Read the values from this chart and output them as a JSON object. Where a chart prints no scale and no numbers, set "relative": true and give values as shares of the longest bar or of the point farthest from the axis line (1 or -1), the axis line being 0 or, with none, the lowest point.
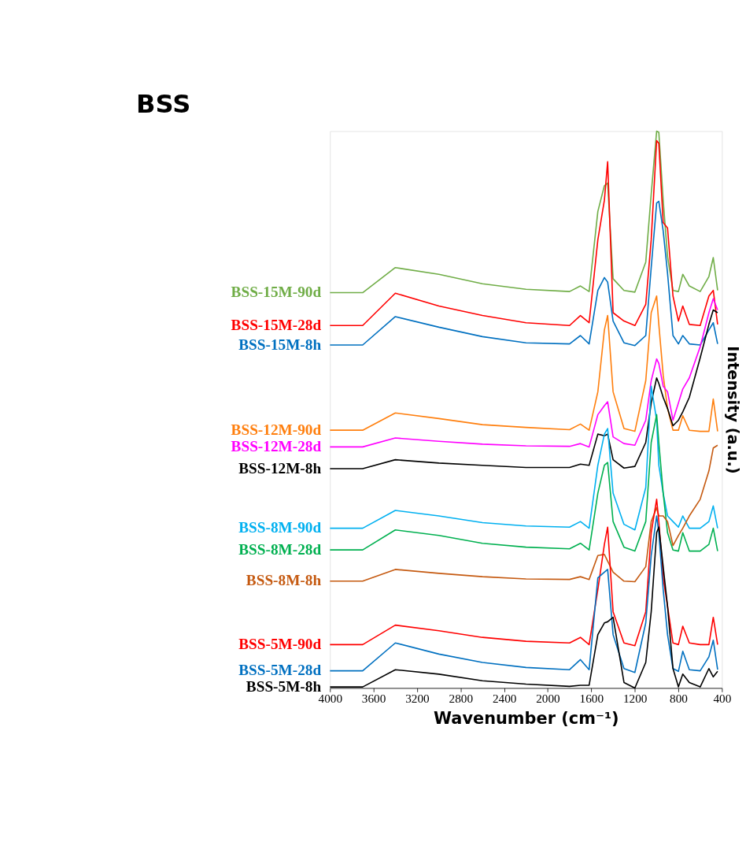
{
  "chart_data": {
    "type": "line",
    "title": "BSS",
    "xlabel": "Wavenumber (cm⁻¹)",
    "ylabel": "Intensity (a.u.)",
    "relative": true,
    "xlim": [
      4000,
      400
    ],
    "xticks": [
      4000,
      3600,
      3200,
      2800,
      2400,
      2000,
      1600,
      1200,
      800,
      400
    ],
    "grid": false,
    "legend": false,
    "marker": "none",
    "line_style": "solid",
    "x": [
      4000,
      3700,
      3400,
      3000,
      2600,
      2200,
      1800,
      1700,
      1620,
      1540,
      1480,
      1450,
      1400,
      1300,
      1200,
      1100,
      1050,
      1000,
      980,
      940,
      900,
      850,
      800,
      760,
      700,
      600,
      520,
      480,
      440
    ],
    "series": [
      {
        "name": "BSS-15M-90d",
        "color": "#70ad47",
        "values": [
          0.71,
          0.71,
          0.755,
          0.743,
          0.726,
          0.716,
          0.712,
          0.722,
          0.712,
          0.856,
          0.902,
          0.907,
          0.735,
          0.714,
          0.711,
          0.765,
          0.887,
          1.0,
          0.998,
          0.876,
          0.775,
          0.714,
          0.712,
          0.743,
          0.722,
          0.712,
          0.739,
          0.773,
          0.714
        ]
      },
      {
        "name": "BSS-15M-28d",
        "color": "#ff0000",
        "values": [
          0.651,
          0.651,
          0.709,
          0.686,
          0.669,
          0.656,
          0.651,
          0.669,
          0.656,
          0.805,
          0.876,
          0.945,
          0.674,
          0.659,
          0.651,
          0.689,
          0.805,
          0.983,
          0.978,
          0.836,
          0.826,
          0.704,
          0.659,
          0.686,
          0.653,
          0.651,
          0.704,
          0.714,
          0.653
        ]
      },
      {
        "name": "BSS-15M-8h",
        "color": "#0070c0",
        "values": [
          0.616,
          0.616,
          0.667,
          0.648,
          0.631,
          0.62,
          0.618,
          0.633,
          0.618,
          0.714,
          0.737,
          0.729,
          0.659,
          0.62,
          0.615,
          0.633,
          0.755,
          0.871,
          0.874,
          0.821,
          0.745,
          0.633,
          0.618,
          0.633,
          0.618,
          0.616,
          0.643,
          0.656,
          0.618
        ]
      },
      {
        "name": "BSS-12M-90d",
        "color": "#ff7f0e",
        "values": [
          0.463,
          0.463,
          0.494,
          0.484,
          0.473,
          0.468,
          0.464,
          0.474,
          0.463,
          0.532,
          0.643,
          0.669,
          0.532,
          0.466,
          0.461,
          0.552,
          0.674,
          0.704,
          0.653,
          0.562,
          0.502,
          0.463,
          0.463,
          0.489,
          0.463,
          0.461,
          0.461,
          0.519,
          0.461
        ]
      },
      {
        "name": "BSS-12M-28d",
        "color": "#ff00ff",
        "values": [
          0.433,
          0.433,
          0.449,
          0.443,
          0.438,
          0.435,
          0.434,
          0.439,
          0.433,
          0.491,
          0.507,
          0.514,
          0.451,
          0.439,
          0.436,
          0.481,
          0.552,
          0.591,
          0.583,
          0.542,
          0.532,
          0.481,
          0.512,
          0.537,
          0.557,
          0.613,
          0.674,
          0.699,
          0.679
        ]
      },
      {
        "name": "BSS-12M-8h",
        "color": "#000000",
        "values": [
          0.394,
          0.394,
          0.41,
          0.404,
          0.4,
          0.396,
          0.396,
          0.402,
          0.4,
          0.456,
          0.453,
          0.456,
          0.41,
          0.395,
          0.398,
          0.441,
          0.512,
          0.557,
          0.547,
          0.522,
          0.502,
          0.471,
          0.481,
          0.496,
          0.522,
          0.593,
          0.653,
          0.679,
          0.674
        ]
      },
      {
        "name": "BSS-8M-90d",
        "color": "#00b0f0",
        "values": [
          0.287,
          0.287,
          0.319,
          0.309,
          0.297,
          0.291,
          0.289,
          0.299,
          0.287,
          0.4,
          0.456,
          0.466,
          0.35,
          0.294,
          0.284,
          0.36,
          0.542,
          0.481,
          0.4,
          0.35,
          0.309,
          0.299,
          0.289,
          0.309,
          0.287,
          0.287,
          0.299,
          0.327,
          0.287
        ]
      },
      {
        "name": "BSS-8M-28d",
        "color": "#00b050",
        "values": [
          0.248,
          0.248,
          0.284,
          0.274,
          0.26,
          0.253,
          0.25,
          0.26,
          0.248,
          0.35,
          0.4,
          0.405,
          0.299,
          0.253,
          0.246,
          0.299,
          0.441,
          0.491,
          0.441,
          0.35,
          0.279,
          0.248,
          0.246,
          0.279,
          0.246,
          0.246,
          0.258,
          0.287,
          0.246
        ]
      },
      {
        "name": "BSS-8M-8h",
        "color": "#c55a11",
        "values": [
          0.192,
          0.192,
          0.213,
          0.206,
          0.2,
          0.196,
          0.195,
          0.2,
          0.195,
          0.238,
          0.24,
          0.228,
          0.208,
          0.192,
          0.191,
          0.218,
          0.299,
          0.324,
          0.309,
          0.309,
          0.299,
          0.256,
          0.274,
          0.287,
          0.309,
          0.339,
          0.39,
          0.431,
          0.436
        ]
      },
      {
        "name": "BSS-5M-90d",
        "color": "#ff0000",
        "values": [
          0.078,
          0.078,
          0.113,
          0.103,
          0.091,
          0.084,
          0.081,
          0.091,
          0.078,
          0.177,
          0.258,
          0.289,
          0.137,
          0.081,
          0.076,
          0.137,
          0.279,
          0.339,
          0.299,
          0.198,
          0.147,
          0.081,
          0.078,
          0.111,
          0.081,
          0.078,
          0.078,
          0.127,
          0.078
        ]
      },
      {
        "name": "BSS-5M-28d",
        "color": "#0070c0",
        "values": [
          0.031,
          0.031,
          0.081,
          0.061,
          0.046,
          0.037,
          0.033,
          0.051,
          0.033,
          0.198,
          0.208,
          0.213,
          0.096,
          0.035,
          0.028,
          0.117,
          0.238,
          0.309,
          0.279,
          0.177,
          0.096,
          0.035,
          0.03,
          0.066,
          0.033,
          0.031,
          0.056,
          0.086,
          0.033
        ]
      },
      {
        "name": "BSS-5M-8h",
        "color": "#000000",
        "values": [
          0.002,
          0.002,
          0.033,
          0.025,
          0.013,
          0.007,
          0.003,
          0.005,
          0.005,
          0.096,
          0.117,
          0.119,
          0.127,
          0.01,
          0.0,
          0.046,
          0.137,
          0.279,
          0.289,
          0.218,
          0.147,
          0.035,
          0.002,
          0.025,
          0.01,
          0.002,
          0.035,
          0.02,
          0.03
        ]
      }
    ]
  }
}
